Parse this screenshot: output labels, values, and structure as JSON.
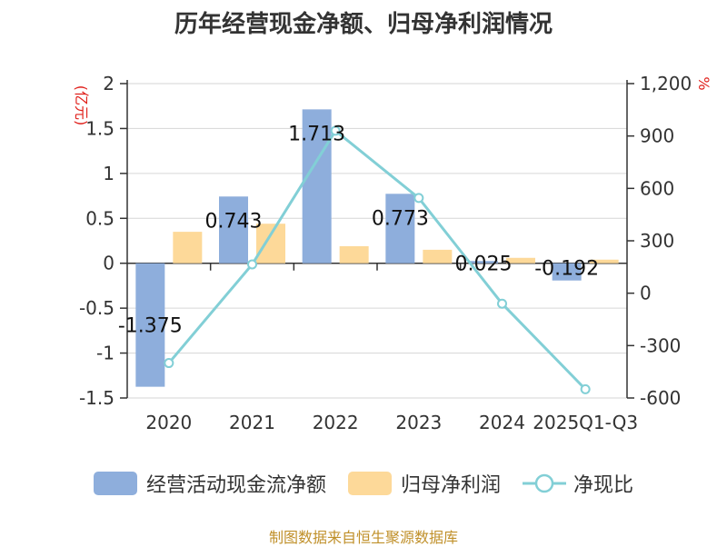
{
  "title": "历年经营现金净额、归母净利润情况",
  "source_note": "制图数据来自恒生聚源数据库",
  "colors": {
    "cash_flow": "#8eaedc",
    "net_profit": "#fdd999",
    "ratio": "#82cfd6",
    "unit_text": "#e0201b",
    "grid": "#d6d6d6",
    "source": "#c0902a"
  },
  "chart_data": {
    "type": "bar",
    "title": "历年经营现金净额、归母净利润情况",
    "categories": [
      "2020",
      "2021",
      "2022",
      "2023",
      "2024",
      "2025Q1-Q3"
    ],
    "left_axis": {
      "unit": "(亿元)",
      "range": [
        -1.5,
        2
      ],
      "ticks": [
        "2",
        "1.5",
        "1",
        "0.5",
        "0",
        "-0.5",
        "-1",
        "-1.5"
      ],
      "tick_values": [
        2,
        1.5,
        1,
        0.5,
        0,
        -0.5,
        -1,
        -1.5
      ]
    },
    "right_axis": {
      "unit": "%",
      "range": [
        -600,
        1200
      ],
      "ticks": [
        "1,200",
        "900",
        "600",
        "300",
        "0",
        "-300",
        "-600"
      ],
      "tick_values": [
        1200,
        900,
        600,
        300,
        0,
        -300,
        -600
      ]
    },
    "series": [
      {
        "name": "经营活动现金流净额",
        "type": "bar",
        "axis": "left",
        "values": [
          -1.375,
          0.743,
          1.713,
          0.773,
          0.025,
          -0.192
        ],
        "labels": [
          "-1.375",
          "0.743",
          "1.713",
          "0.773",
          "0.025",
          "-0.192"
        ]
      },
      {
        "name": "归母净利润",
        "type": "bar",
        "axis": "left",
        "values": [
          0.35,
          0.44,
          0.19,
          0.15,
          0.06,
          0.04
        ]
      },
      {
        "name": "净现比",
        "type": "line",
        "axis": "right",
        "values": [
          -400,
          165,
          930,
          545,
          -60,
          -550
        ]
      }
    ],
    "grid": true,
    "legend_position": "bottom"
  }
}
